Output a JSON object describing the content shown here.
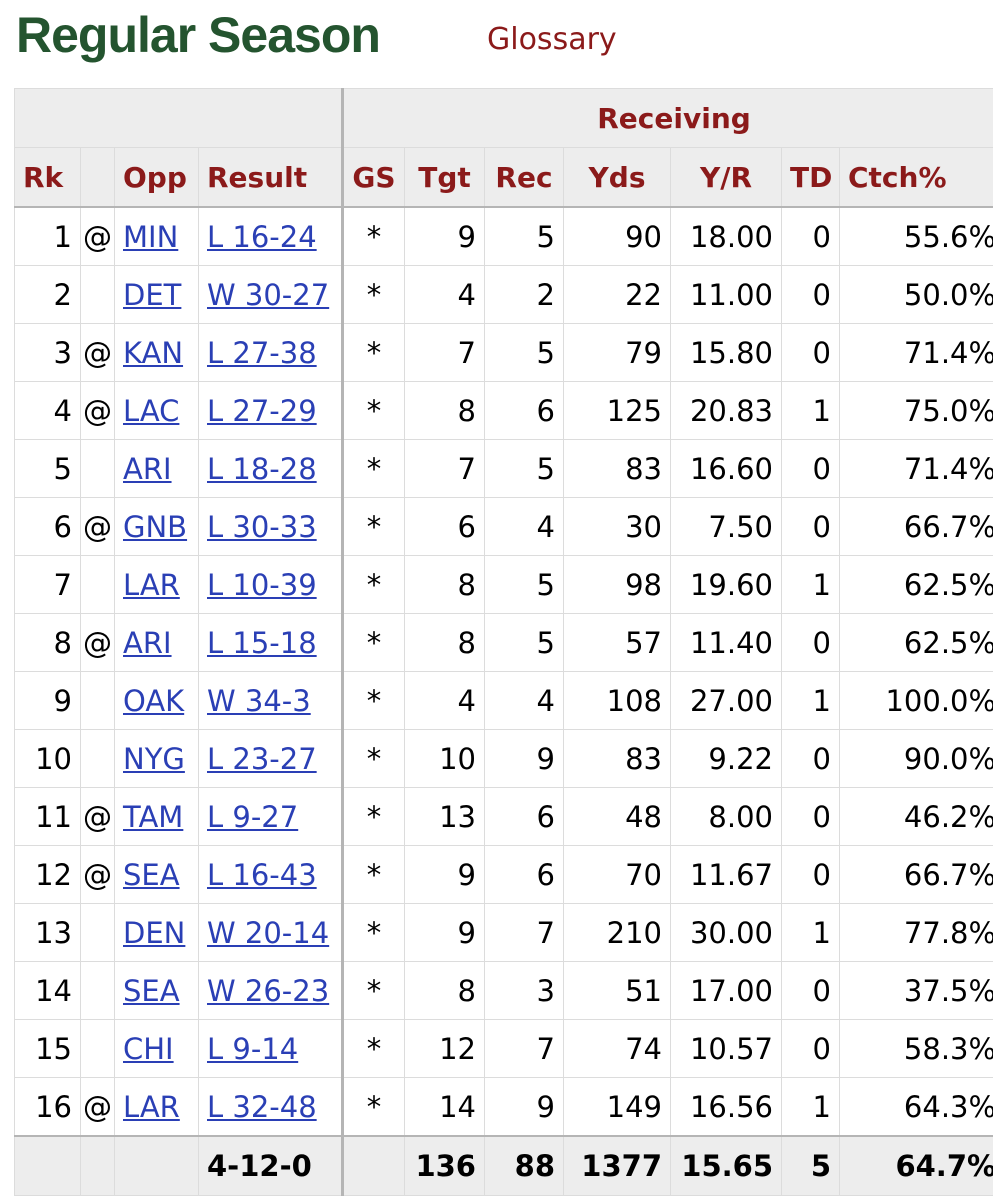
{
  "header": {
    "title": "Regular Season",
    "glossary_label": "Glossary"
  },
  "table": {
    "group_header": "Receiving",
    "columns": {
      "rk": "Rk",
      "loc": "",
      "opp": "Opp",
      "result": "Result",
      "gs": "GS",
      "tgt": "Tgt",
      "rec": "Rec",
      "yds": "Yds",
      "yr": "Y/R",
      "td": "TD",
      "ctch": "Ctch%"
    },
    "rows": [
      {
        "rk": "1",
        "loc": "@",
        "opp": "MIN",
        "result": "L 16-24",
        "gs": "*",
        "tgt": "9",
        "rec": "5",
        "yds": "90",
        "yr": "18.00",
        "td": "0",
        "ctch": "55.6%"
      },
      {
        "rk": "2",
        "loc": "",
        "opp": "DET",
        "result": "W 30-27",
        "gs": "*",
        "tgt": "4",
        "rec": "2",
        "yds": "22",
        "yr": "11.00",
        "td": "0",
        "ctch": "50.0%"
      },
      {
        "rk": "3",
        "loc": "@",
        "opp": "KAN",
        "result": "L 27-38",
        "gs": "*",
        "tgt": "7",
        "rec": "5",
        "yds": "79",
        "yr": "15.80",
        "td": "0",
        "ctch": "71.4%"
      },
      {
        "rk": "4",
        "loc": "@",
        "opp": "LAC",
        "result": "L 27-29",
        "gs": "*",
        "tgt": "8",
        "rec": "6",
        "yds": "125",
        "yr": "20.83",
        "td": "1",
        "ctch": "75.0%"
      },
      {
        "rk": "5",
        "loc": "",
        "opp": "ARI",
        "result": "L 18-28",
        "gs": "*",
        "tgt": "7",
        "rec": "5",
        "yds": "83",
        "yr": "16.60",
        "td": "0",
        "ctch": "71.4%"
      },
      {
        "rk": "6",
        "loc": "@",
        "opp": "GNB",
        "result": "L 30-33",
        "gs": "*",
        "tgt": "6",
        "rec": "4",
        "yds": "30",
        "yr": "7.50",
        "td": "0",
        "ctch": "66.7%"
      },
      {
        "rk": "7",
        "loc": "",
        "opp": "LAR",
        "result": "L 10-39",
        "gs": "*",
        "tgt": "8",
        "rec": "5",
        "yds": "98",
        "yr": "19.60",
        "td": "1",
        "ctch": "62.5%"
      },
      {
        "rk": "8",
        "loc": "@",
        "opp": "ARI",
        "result": "L 15-18",
        "gs": "*",
        "tgt": "8",
        "rec": "5",
        "yds": "57",
        "yr": "11.40",
        "td": "0",
        "ctch": "62.5%"
      },
      {
        "rk": "9",
        "loc": "",
        "opp": "OAK",
        "result": "W 34-3",
        "gs": "*",
        "tgt": "4",
        "rec": "4",
        "yds": "108",
        "yr": "27.00",
        "td": "1",
        "ctch": "100.0%"
      },
      {
        "rk": "10",
        "loc": "",
        "opp": "NYG",
        "result": "L 23-27",
        "gs": "*",
        "tgt": "10",
        "rec": "9",
        "yds": "83",
        "yr": "9.22",
        "td": "0",
        "ctch": "90.0%"
      },
      {
        "rk": "11",
        "loc": "@",
        "opp": "TAM",
        "result": "L 9-27",
        "gs": "*",
        "tgt": "13",
        "rec": "6",
        "yds": "48",
        "yr": "8.00",
        "td": "0",
        "ctch": "46.2%"
      },
      {
        "rk": "12",
        "loc": "@",
        "opp": "SEA",
        "result": "L 16-43",
        "gs": "*",
        "tgt": "9",
        "rec": "6",
        "yds": "70",
        "yr": "11.67",
        "td": "0",
        "ctch": "66.7%"
      },
      {
        "rk": "13",
        "loc": "",
        "opp": "DEN",
        "result": "W 20-14",
        "gs": "*",
        "tgt": "9",
        "rec": "7",
        "yds": "210",
        "yr": "30.00",
        "td": "1",
        "ctch": "77.8%"
      },
      {
        "rk": "14",
        "loc": "",
        "opp": "SEA",
        "result": "W 26-23",
        "gs": "*",
        "tgt": "8",
        "rec": "3",
        "yds": "51",
        "yr": "17.00",
        "td": "0",
        "ctch": "37.5%"
      },
      {
        "rk": "15",
        "loc": "",
        "opp": "CHI",
        "result": "L 9-14",
        "gs": "*",
        "tgt": "12",
        "rec": "7",
        "yds": "74",
        "yr": "10.57",
        "td": "0",
        "ctch": "58.3%"
      },
      {
        "rk": "16",
        "loc": "@",
        "opp": "LAR",
        "result": "L 32-48",
        "gs": "*",
        "tgt": "14",
        "rec": "9",
        "yds": "149",
        "yr": "16.56",
        "td": "1",
        "ctch": "64.3%"
      }
    ],
    "totals": {
      "result": "4-12-0",
      "tgt": "136",
      "rec": "88",
      "yds": "1377",
      "yr": "15.65",
      "td": "5",
      "ctch": "64.7%"
    }
  }
}
